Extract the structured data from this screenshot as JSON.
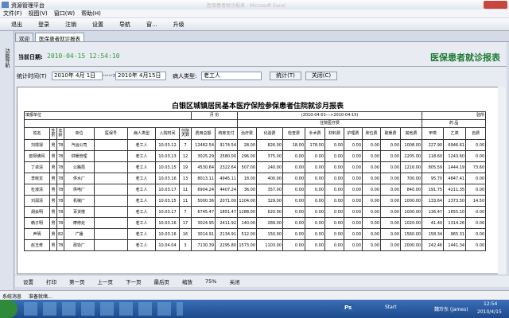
{
  "window": {
    "title": "资源管理平台",
    "faint_title": "医保患者就诊报表 - Microsoft Excel"
  },
  "menu": [
    "文件(F)",
    "视图(V)",
    "窗口(W)",
    "帮助(H)"
  ],
  "toolbar": [
    "退出",
    "登录",
    "注销",
    "设置",
    "导航",
    "窗...",
    "升级"
  ],
  "side_label": "功能导航",
  "tabs": [
    "欢迎",
    "医保患者就诊报表"
  ],
  "header": {
    "date_label": "当前日期:",
    "date_value": "2010-04-15 12:54:10",
    "title": "医保患者就诊报表"
  },
  "filter": {
    "time_label": "统计时间(T)",
    "from": "2010年 4月 1日",
    "arrow": "----->",
    "to": "2010年 4月15日",
    "type_label": "病人类型:",
    "type_value": "老工人",
    "stat_button": "统计(T)",
    "close_button": "关闭(C)"
  },
  "report": {
    "title": "白银区城镇居民基本医疗保险参保患者住院就诊月报表",
    "unit_label": "填报单位",
    "month_label": "月 份",
    "period": "(2010-04-01--->2010-04-15)",
    "right_label": "验所",
    "group_fee": "住院医疗费",
    "group_drug": "药 品",
    "columns": [
      "姓名",
      "性别",
      "年龄",
      "单位",
      "医保号",
      "病人类型",
      "入院时间",
      "住院天数",
      "费用总额",
      "统筹支付",
      "治疗费",
      "化验费",
      "检查费",
      "手术费",
      "材料费",
      "护理费",
      "床位费",
      "取暖费",
      "其他费",
      "甲类",
      "乙类",
      "自费"
    ],
    "rows": [
      [
        "刘璟禄",
        "男",
        "78",
        "汽运公司",
        null,
        "老工人",
        "10.03.12",
        "7",
        "12482.54",
        "9174.54",
        "28.00",
        "826.00",
        "18.00",
        "178.00",
        "0.00",
        "0.00",
        "0.00",
        "0.00",
        "1008.00",
        "227.90",
        "6946.61",
        "0.00"
      ],
      [
        "欧阳佛风",
        "男",
        "78",
        "供暖管理",
        null,
        "老工人",
        "10.03.13",
        "12",
        "3025.29",
        "2580.00",
        "296.00",
        "375.00",
        "0.00",
        "0.00",
        "0.00",
        "0.00",
        "0.00",
        "0.00",
        "2205.00",
        "118.60",
        "1243.60",
        "0.00"
      ],
      [
        "丁卓清",
        "男",
        "78",
        "公路局",
        null,
        "老工人",
        "10.03.15",
        "19",
        "4530.64",
        "2322.64",
        "507.00",
        "240.00",
        "0.00",
        "0.00",
        "0.00",
        "0.00",
        "0.00",
        "0.00",
        "1216.00",
        "805.59",
        "1444.19",
        "73.60"
      ],
      [
        "李晓龙",
        "男",
        "78",
        "供水厂",
        null,
        "老工人",
        "10.03.16",
        "13",
        "8013.11",
        "4945.11",
        "18.00",
        "400.00",
        "0.00",
        "0.00",
        "0.00",
        "0.00",
        "0.00",
        "0.00",
        "700.00",
        "95.70",
        "4847.41",
        "0.00"
      ],
      [
        "杜淑清",
        "男",
        "78",
        "供电厂",
        null,
        "老工人",
        "10.03.17",
        "11",
        "6904.24",
        "4407.24",
        "36.00",
        "357.00",
        "0.00",
        "0.00",
        "0.00",
        "0.00",
        "0.00",
        "0.00",
        "840.00",
        "191.75",
        "4211.35",
        "0.00"
      ],
      [
        "刘润清",
        "男",
        "78",
        "机械厂",
        null,
        "老工人",
        "10.03.15",
        "11",
        "5000.36",
        "2071.00",
        "1104.00",
        "329.00",
        "0.00",
        "0.00",
        "0.00",
        "0.00",
        "0.00",
        "0.00",
        "1000.00",
        "133.64",
        "2373.50",
        "14.50"
      ],
      [
        "胡会明",
        "男",
        "78",
        "百货楼",
        null,
        "老工人",
        "10.03.17",
        "7",
        "6745.47",
        "1851.47",
        "1288.00",
        "620.00",
        "0.00",
        "0.00",
        "0.00",
        "0.00",
        "0.00",
        "0.00",
        "1000.00",
        "136.47",
        "1655.10",
        "0.00"
      ],
      [
        "韩子明",
        "男",
        "78",
        "摩修处",
        null,
        "老工人",
        "10.03.16",
        "17",
        "3024.95",
        "2411.92",
        "140.00",
        "289.00",
        "0.00",
        "0.00",
        "0.00",
        "0.00",
        "0.00",
        "0.00",
        "1020.00",
        "41.40",
        "1314.26",
        "0.00"
      ],
      [
        "声明",
        "男",
        "82",
        "广播",
        null,
        "老工人",
        "10.03.16",
        "16",
        "3014.91",
        "2134.91",
        "512.00",
        "150.00",
        "0.00",
        "0.00",
        "0.00",
        "0.00",
        "0.00",
        "0.00",
        "1560.00",
        "158.34",
        "965.31",
        "0.00"
      ],
      [
        "赵玉奇",
        "男",
        "78",
        "政协厂",
        null,
        "老工人",
        "10.04.04",
        "3",
        "7130.39",
        "2295.80",
        "1573.00",
        "1103.00",
        "0.00",
        "0.00",
        "0.00",
        "0.00",
        "0.00",
        "0.00",
        "2000.00",
        "242.46",
        "1441.34",
        "0.00"
      ]
    ]
  },
  "bottom_toolbar": [
    "设置",
    "打印",
    "第一页",
    "上一页",
    "下一页",
    "最后页",
    "缩放",
    "75%",
    "关闭"
  ],
  "status": {
    "label": "系统消息",
    "message": "准备就绪..."
  },
  "taskbar": {
    "start": "Start",
    "app": "Ps",
    "user": "魏玲东 (james)",
    "time": "12:54",
    "date": "2010/4/15"
  }
}
